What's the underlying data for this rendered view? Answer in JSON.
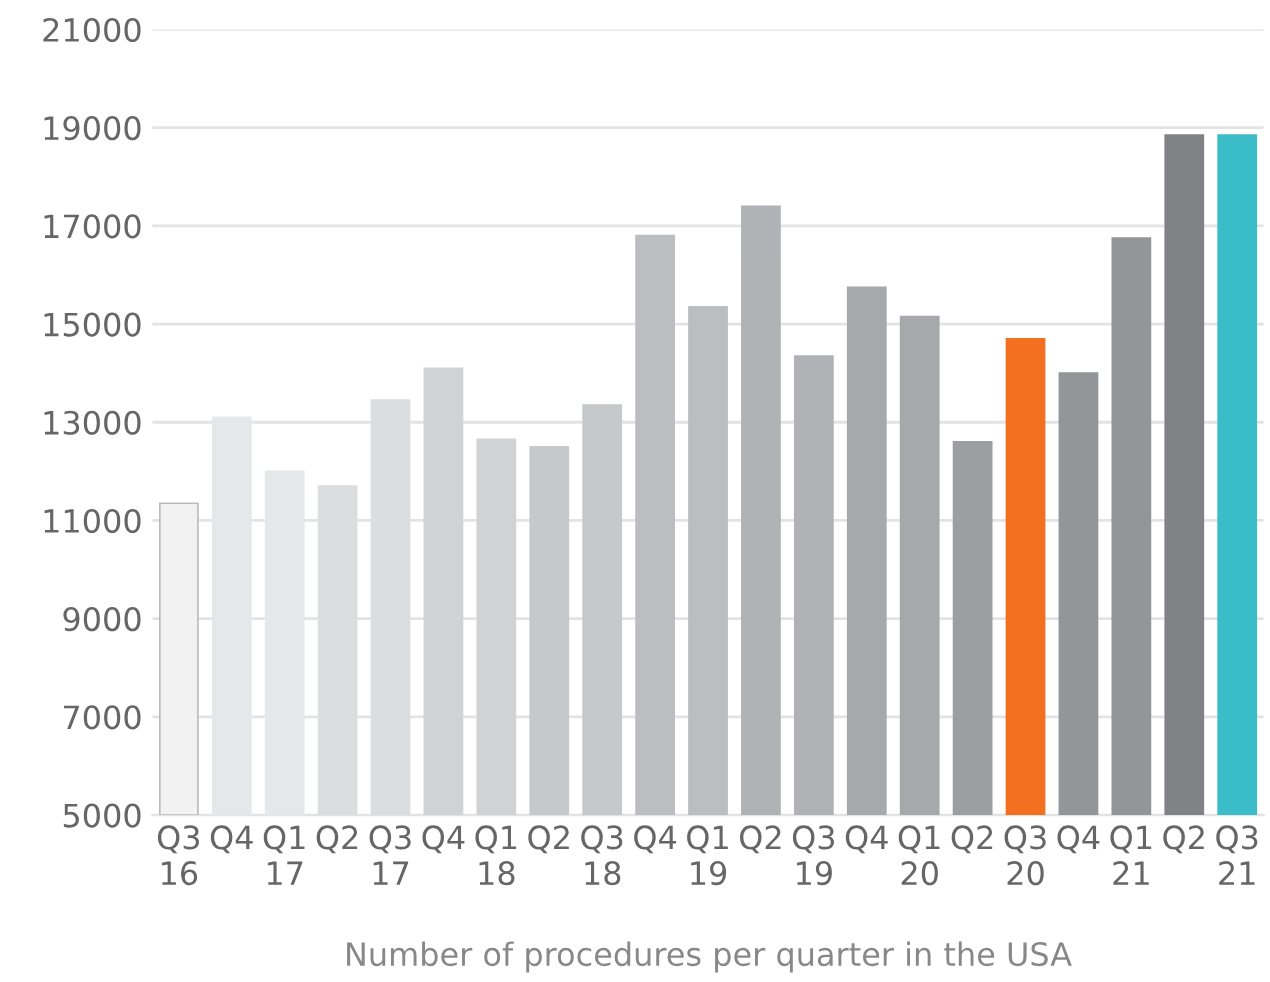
{
  "chart_data": {
    "type": "bar",
    "xlabel": "Number of procedures per quarter in the USA",
    "categories": [
      "Q3\n16",
      "Q4",
      "Q1\n17",
      "Q2",
      "Q3\n17",
      "Q4",
      "Q1\n18",
      "Q2",
      "Q3\n18",
      "Q4",
      "Q1\n19",
      "Q2",
      "Q3\n19",
      "Q4",
      "Q1\n20",
      "Q2",
      "Q3\n20",
      "Q4",
      "Q1\n21",
      "Q2",
      "Q3\n21"
    ],
    "values": [
      11350,
      13100,
      12000,
      11700,
      13450,
      14100,
      12650,
      12500,
      13350,
      16800,
      15350,
      17400,
      14350,
      15750,
      15150,
      12600,
      14700,
      14000,
      16750,
      18850,
      18850
    ],
    "colors": [
      "#f2f2f2",
      "#e6e7e8",
      "#e6e7e8",
      "#dcdddf",
      "#dcdddf",
      "#d1d2d4",
      "#d1d2d4",
      "#c7c8ca",
      "#c7c8ca",
      "#bcbdc0",
      "#bcbdc0",
      "#b1b2b5",
      "#b1b2b5",
      "#a7a8ab",
      "#a7a8ab",
      "#9d9ea1",
      "#f37021",
      "#939598",
      "#939598",
      "#808285",
      "#3bbdc9"
    ],
    "ylim": [
      5000,
      21000
    ],
    "yticks": [
      5000,
      7000,
      9000,
      11000,
      13000,
      15000,
      17000,
      19000,
      21000
    ],
    "grid": "y"
  }
}
